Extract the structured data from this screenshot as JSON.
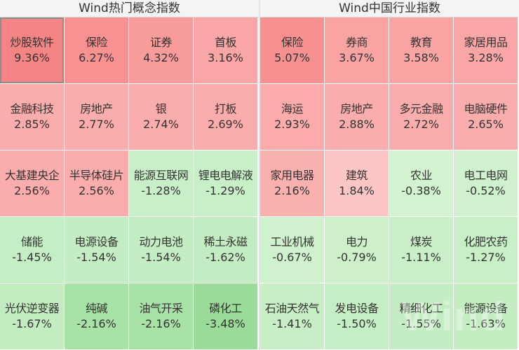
{
  "left_panel": {
    "title": "Wind热门概念指数",
    "tiles": [
      {
        "name": "炒股软件",
        "value": "9.36%",
        "color": "#f58585"
      },
      {
        "name": "保险",
        "value": "6.27%",
        "color": "#f89292"
      },
      {
        "name": "证券",
        "value": "4.32%",
        "color": "#f79b9b"
      },
      {
        "name": "首板",
        "value": "3.16%",
        "color": "#faa6a6"
      },
      {
        "name": "金融科技",
        "value": "2.85%",
        "color": "#fbacac"
      },
      {
        "name": "房地产",
        "value": "2.77%",
        "color": "#fbacac"
      },
      {
        "name": "银",
        "value": "2.74%",
        "color": "#fbacac"
      },
      {
        "name": "打板",
        "value": "2.69%",
        "color": "#fbacac"
      },
      {
        "name": "大基建央企",
        "value": "2.56%",
        "color": "#fbadad"
      },
      {
        "name": "半导体硅片",
        "value": "2.56%",
        "color": "#fbadad"
      },
      {
        "name": "能源互联网",
        "value": "-1.28%",
        "color": "#c9efc8"
      },
      {
        "name": "锂电电解液",
        "value": "-1.29%",
        "color": "#c9efc8"
      },
      {
        "name": "储能",
        "value": "-1.45%",
        "color": "#c6eec4"
      },
      {
        "name": "电源设备",
        "value": "-1.54%",
        "color": "#c5edc3"
      },
      {
        "name": "动力电池",
        "value": "-1.54%",
        "color": "#c5edc3"
      },
      {
        "name": "稀土永磁",
        "value": "-1.62%",
        "color": "#c4ecc2"
      },
      {
        "name": "光伏逆变器",
        "value": "-1.67%",
        "color": "#c3ecc1"
      },
      {
        "name": "纯碱",
        "value": "-2.16%",
        "color": "#a9e2a7"
      },
      {
        "name": "油气开采",
        "value": "-2.16%",
        "color": "#a9e2a7"
      },
      {
        "name": "磷化工",
        "value": "-3.48%",
        "color": "#9bdb99"
      }
    ]
  },
  "right_panel": {
    "title": "Wind中国行业指数",
    "tiles": [
      {
        "name": "保险",
        "value": "5.07%",
        "color": "#f79090"
      },
      {
        "name": "券商",
        "value": "3.67%",
        "color": "#faa3a3"
      },
      {
        "name": "教育",
        "value": "3.58%",
        "color": "#faa4a4"
      },
      {
        "name": "家居用品",
        "value": "3.28%",
        "color": "#faa6a6"
      },
      {
        "name": "海运",
        "value": "2.93%",
        "color": "#fbabab"
      },
      {
        "name": "房地产",
        "value": "2.88%",
        "color": "#fbacac"
      },
      {
        "name": "多元金融",
        "value": "2.72%",
        "color": "#fbacac"
      },
      {
        "name": "电脑硬件",
        "value": "2.65%",
        "color": "#fbadad"
      },
      {
        "name": "家用电器",
        "value": "2.16%",
        "color": "#fbb0b0"
      },
      {
        "name": "建筑",
        "value": "1.84%",
        "color": "#fdc6c6"
      },
      {
        "name": "农业",
        "value": "-0.38%",
        "color": "#d2f2d0"
      },
      {
        "name": "电工电网",
        "value": "-0.52%",
        "color": "#d0f1ce"
      },
      {
        "name": "工业机械",
        "value": "-0.67%",
        "color": "#cff1cd"
      },
      {
        "name": "电力",
        "value": "-0.79%",
        "color": "#cdf0cb"
      },
      {
        "name": "煤炭",
        "value": "-1.11%",
        "color": "#caefc8"
      },
      {
        "name": "化肥农药",
        "value": "-1.27%",
        "color": "#c9efc7"
      },
      {
        "name": "石油天然气",
        "value": "-1.41%",
        "color": "#c7eec5"
      },
      {
        "name": "发电设备",
        "value": "-1.50%",
        "color": "#c6eec4"
      },
      {
        "name": "精细化工",
        "value": "-1.55%",
        "color": "#c5edc3"
      },
      {
        "name": "能源设备",
        "value": "-1.63%",
        "color": "#c4edc2"
      }
    ]
  },
  "selected_tile": "left-0",
  "watermark_text": "Wind"
}
